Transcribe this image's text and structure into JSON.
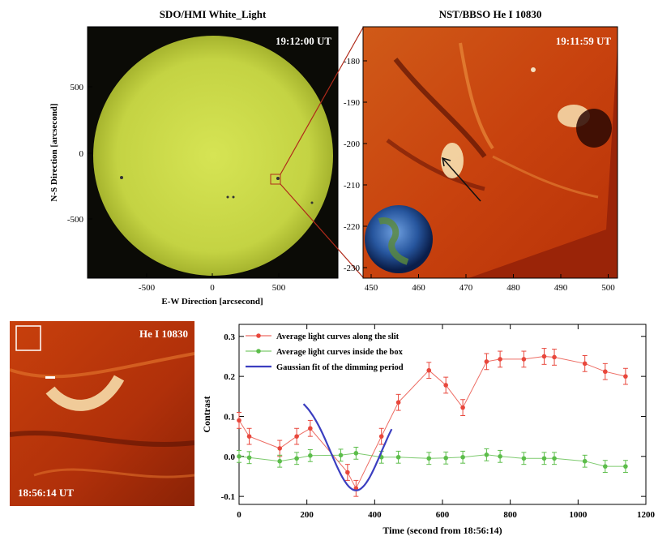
{
  "panels": {
    "sdo": {
      "title": "SDO/HMI White_Light",
      "timestamp": "19:12:00 UT",
      "xlabel": "E-W Direction [arcsecond]",
      "ylabel": "N-S Direction [arcsecond]",
      "xticks": [
        "-500",
        "0",
        "500"
      ],
      "yticks": [
        "500",
        "0",
        "-500"
      ],
      "disk_color": "#c8d84a"
    },
    "nst": {
      "title": "NST/BBSO  He I 10830",
      "timestamp": "19:11:59 UT",
      "xticks": [
        "450",
        "460",
        "470",
        "480",
        "490",
        "500"
      ],
      "yticks": [
        "-180",
        "-190",
        "-200",
        "-210",
        "-220",
        "-230"
      ]
    },
    "he": {
      "label": "He I 10830",
      "timestamp": "18:56:14 UT"
    }
  },
  "chart_data": {
    "type": "line",
    "xlabel": "Time (second from 18:56:14)",
    "ylabel": "Contrast",
    "xlim": [
      0,
      1200
    ],
    "ylim": [
      -0.12,
      0.33
    ],
    "xticks": [
      0,
      200,
      400,
      600,
      800,
      1000,
      1200
    ],
    "yticks": [
      -0.1,
      0.0,
      0.1,
      0.2,
      0.3
    ],
    "ytick_labels": [
      "-0.1",
      "0.0",
      "0.1",
      "0.2",
      "0.3"
    ],
    "legend_position": "top-left",
    "series": [
      {
        "name": "Average light curves along the slit",
        "color": "#e8473c",
        "x": [
          0,
          30,
          120,
          170,
          210,
          320,
          345,
          420,
          470,
          560,
          610,
          660,
          730,
          770,
          840,
          900,
          930,
          1020,
          1080,
          1140
        ],
        "y": [
          0.09,
          0.05,
          0.02,
          0.05,
          0.07,
          -0.04,
          -0.08,
          0.05,
          0.135,
          0.215,
          0.178,
          0.122,
          0.237,
          0.243,
          0.243,
          0.25,
          0.248,
          0.232,
          0.212,
          0.2
        ],
        "err": [
          0.02,
          0.02,
          0.02,
          0.02,
          0.02,
          0.02,
          0.02,
          0.02,
          0.02,
          0.02,
          0.02,
          0.02,
          0.02,
          0.02,
          0.02,
          0.02,
          0.02,
          0.02,
          0.02,
          0.02
        ]
      },
      {
        "name": "Average light curves inside the box",
        "color": "#5cbd4a",
        "x": [
          0,
          30,
          120,
          170,
          210,
          300,
          345,
          420,
          470,
          560,
          610,
          660,
          730,
          770,
          840,
          900,
          930,
          1020,
          1080,
          1140
        ],
        "y": [
          0.0,
          -0.003,
          -0.012,
          -0.005,
          0.002,
          0.003,
          0.008,
          -0.002,
          -0.002,
          -0.005,
          -0.004,
          -0.002,
          0.004,
          0.0,
          -0.005,
          -0.005,
          -0.005,
          -0.012,
          -0.025,
          -0.025
        ],
        "err": [
          0.015,
          0.015,
          0.015,
          0.015,
          0.015,
          0.015,
          0.015,
          0.015,
          0.015,
          0.015,
          0.015,
          0.015,
          0.015,
          0.015,
          0.015,
          0.015,
          0.015,
          0.015,
          0.015,
          0.015
        ]
      },
      {
        "name": "Gaussian fit of the dimming period",
        "color": "#3b3ec0",
        "fit": {
          "baseline": 0.16,
          "amplitude": -0.245,
          "center": 345,
          "sigma": 75,
          "x_start": 190,
          "x_end": 450
        }
      }
    ]
  }
}
